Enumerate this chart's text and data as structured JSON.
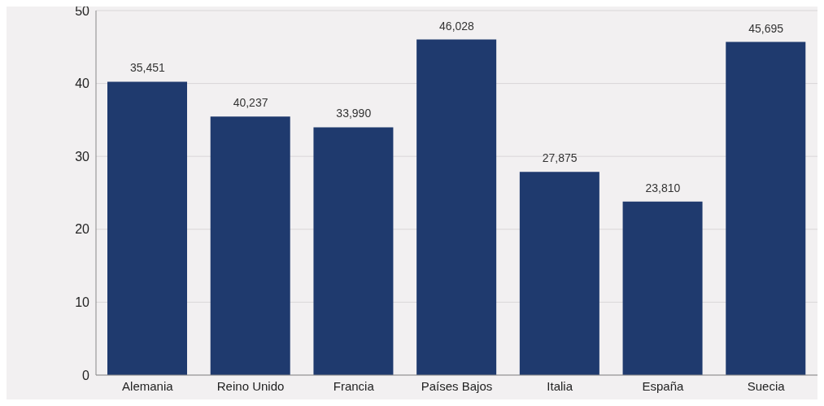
{
  "chart_data": {
    "type": "bar",
    "categories": [
      "Alemania",
      "Reino Unido",
      "Francia",
      "Países Bajos",
      "Italia",
      "España",
      "Suecia"
    ],
    "values": [
      40.237,
      35.451,
      33.99,
      46.028,
      27.875,
      23.81,
      45.695
    ],
    "annotations": [
      {
        "text": "35,451",
        "x": "Alemania",
        "y": 40.237
      },
      {
        "text": "40,237",
        "x": "Reino Unido",
        "y": 35.451
      },
      {
        "text": "33,990",
        "x": "Francia",
        "y": 33.99
      },
      {
        "text": "46,028",
        "x": "Países Bajos",
        "y": 46.028
      },
      {
        "text": "27,875",
        "x": "Italia",
        "y": 27.875
      },
      {
        "text": "23,810",
        "x": "España",
        "y": 23.81
      },
      {
        "text": "45,695",
        "x": "Suecia",
        "y": 45.695
      }
    ],
    "color": "#1f3a6e",
    "ylim": [
      0,
      50
    ],
    "yticks": [
      0,
      10,
      20,
      30,
      40,
      50
    ],
    "grid": "y"
  }
}
